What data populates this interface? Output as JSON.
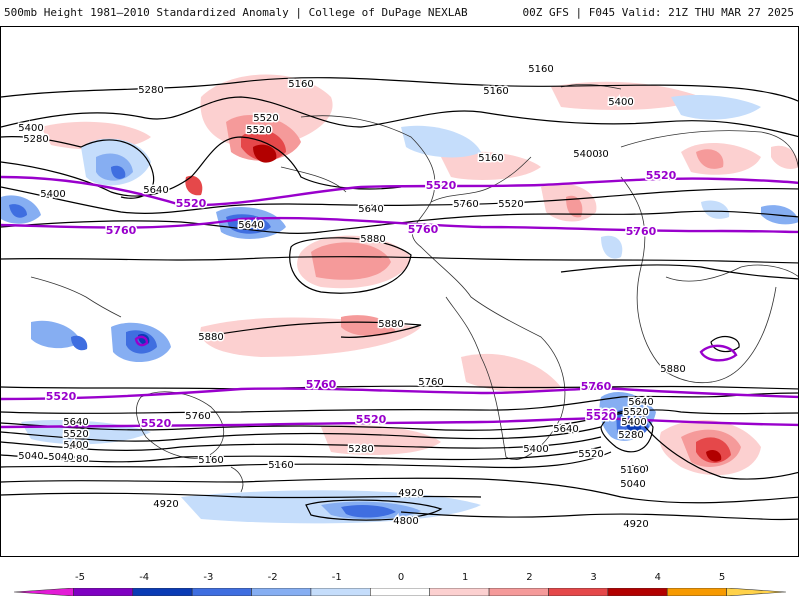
{
  "header": {
    "title": "500mb Height 1981–2010 Standardized Anomaly | College of DuPage NEXLAB",
    "run_info": "00Z GFS | F045 Valid: 21Z THU MAR 27 2025"
  },
  "map": {
    "contour_labels_black": [
      "5160",
      "5280",
      "5160",
      "5160",
      "5400",
      "5520",
      "5400",
      "5520",
      "5280",
      "5640",
      "5400",
      "5160",
      "5280",
      "5400",
      "5640",
      "5760",
      "5640",
      "5520",
      "5880",
      "5880",
      "5880",
      "5880",
      "5760",
      "5760",
      "5640",
      "5520",
      "5400",
      "5280",
      "5040",
      "5640",
      "5520",
      "5400",
      "5280",
      "5160",
      "5040",
      "5160",
      "5040",
      "4920",
      "4920",
      "4800",
      "5640",
      "5520",
      "5400",
      "5280",
      "5160",
      "5040",
      "4920"
    ],
    "contour_labels_purple": [
      "5520",
      "5520",
      "5760",
      "5760",
      "5520",
      "5760",
      "5520",
      "5760",
      "5760",
      "5520",
      "5760",
      "5520",
      "5520"
    ],
    "colors": {
      "purple_contour": "#9900cc",
      "black_contour": "#000000",
      "coastline": "#333333"
    }
  },
  "colorbar": {
    "ticks": [
      "-5",
      "-4",
      "-3",
      "-2",
      "-1",
      "0",
      "1",
      "2",
      "3",
      "4",
      "5"
    ],
    "colors": [
      "#e31bd6",
      "#7f00c2",
      "#0a3bb5",
      "#3f6ee0",
      "#86aef2",
      "#c5ddfb",
      "#ffffff",
      "#fcd0d0",
      "#f59a9a",
      "#e5484a",
      "#b20000",
      "#f79a00",
      "#ffd24a"
    ]
  }
}
